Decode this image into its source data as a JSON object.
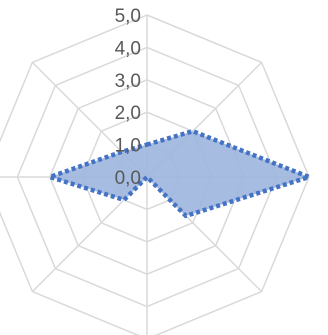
{
  "chart_data": {
    "type": "radar",
    "axes_count": 8,
    "rlim": [
      0,
      5
    ],
    "tick_labels": [
      "0,0",
      "1,0",
      "2,0",
      "3,0",
      "4,0",
      "5,0"
    ],
    "tick_values": [
      0,
      1,
      2,
      3,
      4,
      5
    ],
    "grid": true,
    "legend": "none",
    "series": [
      {
        "values": [
          1.0,
          2.0,
          5.0,
          1.7,
          0.0,
          1.0,
          3.0,
          1.1
        ],
        "color": "#4472c4",
        "fill_color": "#9db5de",
        "line_style": "dotted"
      }
    ]
  }
}
